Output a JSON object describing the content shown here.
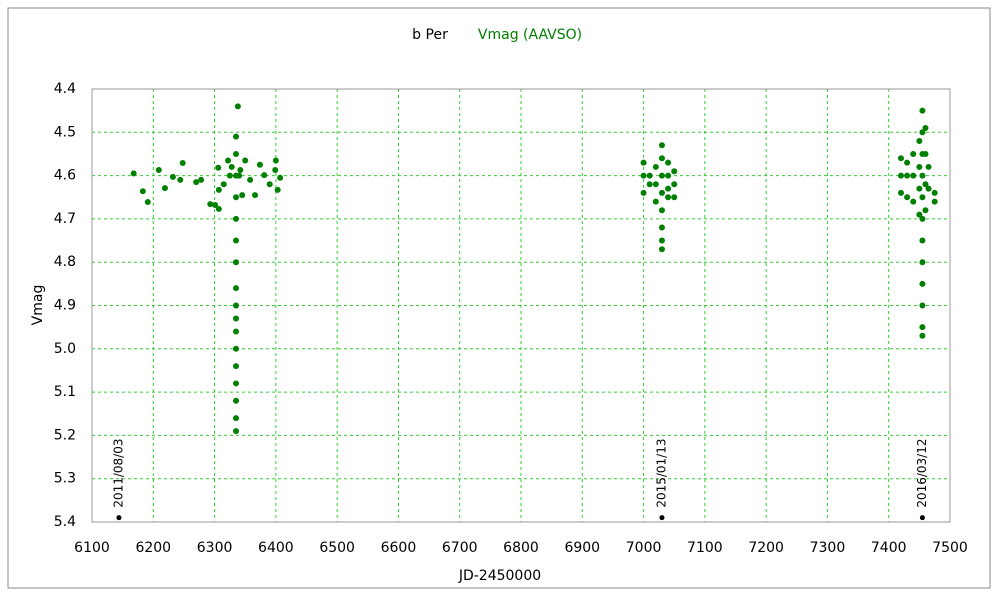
{
  "chart_data": {
    "type": "scatter",
    "title": "b Per",
    "x_label": "JD-2450000",
    "y_label": "Vmag",
    "xlim": [
      6100,
      7500
    ],
    "xticks": [
      6100,
      6200,
      6300,
      6400,
      6500,
      6600,
      6700,
      6800,
      6900,
      7000,
      7100,
      7200,
      7300,
      7400,
      7500
    ],
    "ylim": [
      4.4,
      5.4
    ],
    "invert_y": true,
    "yticks": [
      4.4,
      4.5,
      4.6,
      4.7,
      4.8,
      4.9,
      {
        "value": 5,
        "label": "5.0"
      },
      5.1,
      5.2,
      5.3,
      5.4
    ],
    "grid": true,
    "grid_color": "#33cc33",
    "series": [
      {
        "name": "Vmag (AAVSO)",
        "color": "#008000",
        "x": [
          6168,
          6183,
          6191,
          6209,
          6219,
          6232,
          6244,
          6248,
          6270,
          6278,
          6293,
          6301,
          6307,
          6306,
          6307,
          6315,
          6322,
          6325,
          6328,
          6338,
          6335,
          6335,
          6335,
          6335,
          6335,
          6335,
          6335,
          6335,
          6335,
          6335,
          6335,
          6335,
          6335,
          6335,
          6335,
          6335,
          6335,
          6340,
          6342,
          6345,
          6350,
          6358,
          6366,
          6374,
          6381,
          6390,
          6399,
          6400,
          6403,
          6407,
          7000,
          7000,
          7000,
          7010,
          7010,
          7020,
          7020,
          7020,
          7030,
          7030,
          7030,
          7030,
          7030,
          7030,
          7030,
          7030,
          7040,
          7040,
          7040,
          7040,
          7050,
          7050,
          7050,
          7420,
          7420,
          7420,
          7430,
          7430,
          7430,
          7440,
          7440,
          7440,
          7450,
          7450,
          7450,
          7450,
          7455,
          7455,
          7455,
          7455,
          7455,
          7455,
          7455,
          7455,
          7455,
          7455,
          7455,
          7455,
          7460,
          7460,
          7460,
          7460,
          7465,
          7465,
          7475,
          7475
        ],
        "values": [
          4.595,
          4.636,
          4.661,
          4.587,
          4.629,
          4.603,
          4.61,
          4.571,
          4.615,
          4.61,
          4.666,
          4.668,
          4.677,
          4.582,
          4.633,
          4.62,
          4.565,
          4.6,
          4.58,
          4.44,
          4.51,
          4.55,
          4.6,
          4.65,
          4.7,
          4.75,
          4.8,
          4.86,
          4.9,
          4.93,
          4.96,
          5.0,
          5.04,
          5.08,
          5.12,
          5.16,
          5.19,
          4.6,
          4.587,
          4.645,
          4.565,
          4.61,
          4.645,
          4.575,
          4.599,
          4.62,
          4.587,
          4.565,
          4.633,
          4.605,
          4.57,
          4.6,
          4.64,
          4.6,
          4.62,
          4.58,
          4.62,
          4.66,
          4.53,
          4.56,
          4.6,
          4.64,
          4.68,
          4.72,
          4.75,
          4.77,
          4.57,
          4.6,
          4.63,
          4.65,
          4.59,
          4.62,
          4.65,
          4.56,
          4.6,
          4.64,
          4.57,
          4.6,
          4.65,
          4.55,
          4.6,
          4.66,
          4.52,
          4.58,
          4.63,
          4.69,
          4.45,
          4.5,
          4.55,
          4.6,
          4.65,
          4.7,
          4.75,
          4.8,
          4.85,
          4.9,
          4.95,
          4.97,
          4.49,
          4.55,
          4.62,
          4.68,
          4.58,
          4.63,
          4.64,
          4.66
        ]
      }
    ],
    "annotations": [
      {
        "x": 6144,
        "y": 5.39,
        "label": "2011/08/03"
      },
      {
        "x": 7030,
        "y": 5.39,
        "label": "2015/01/13"
      },
      {
        "x": 7455,
        "y": 5.39,
        "label": "2016/03/12"
      }
    ]
  }
}
